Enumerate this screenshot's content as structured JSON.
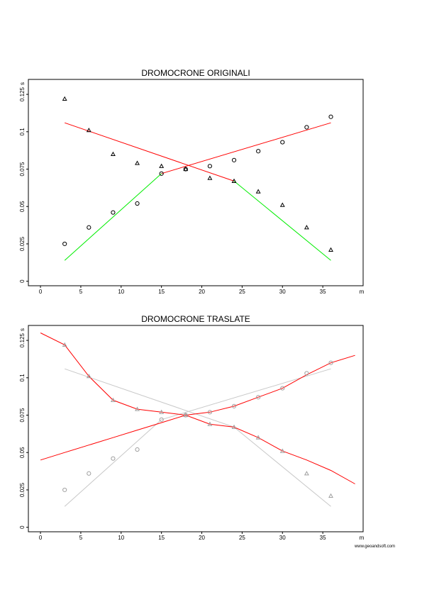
{
  "footer": {
    "credit": "www.geoandsoft.com"
  },
  "chart_data": [
    {
      "type": "scatter",
      "title": "DROMOCRONE ORIGINALI",
      "xlabel": "m",
      "ylabel": "s",
      "xlim": [
        -1.5,
        40
      ],
      "ylim": [
        -0.003,
        0.135
      ],
      "x_ticks": [
        0,
        5,
        10,
        15,
        20,
        25,
        30,
        35
      ],
      "y_ticks": [
        0,
        0.025,
        0.05,
        0.075,
        0.1,
        0.125
      ],
      "y_tick_labels": [
        "0",
        "0.025",
        "0.05",
        "0.075",
        "0.1",
        "0.125"
      ],
      "grid": false,
      "markers": [
        {
          "name": "triangles",
          "shape": "triangle",
          "color": "#000000",
          "x": [
            3,
            6,
            9,
            12,
            15,
            18,
            21,
            24,
            27,
            30,
            33,
            36
          ],
          "y": [
            0.122,
            0.101,
            0.085,
            0.079,
            0.077,
            0.075,
            0.069,
            0.067,
            0.06,
            0.051,
            0.036,
            0.021
          ]
        },
        {
          "name": "circles",
          "shape": "circle",
          "color": "#000000",
          "x": [
            3,
            6,
            9,
            12,
            15,
            18,
            21,
            24,
            27,
            30,
            33,
            36
          ],
          "y": [
            0.025,
            0.036,
            0.046,
            0.052,
            0.072,
            0.075,
            0.077,
            0.081,
            0.087,
            0.093,
            0.103,
            0.11
          ]
        }
      ],
      "lines": [
        {
          "color": "#ff0000",
          "x": [
            3,
            24
          ],
          "y": [
            0.106,
            0.067
          ]
        },
        {
          "color": "#ff0000",
          "x": [
            15,
            36
          ],
          "y": [
            0.072,
            0.106
          ]
        },
        {
          "color": "#00ee00",
          "x": [
            3,
            15
          ],
          "y": [
            0.014,
            0.072
          ]
        },
        {
          "color": "#00ee00",
          "x": [
            24,
            36
          ],
          "y": [
            0.067,
            0.014
          ]
        }
      ]
    },
    {
      "type": "line",
      "title": "DROMOCRONE TRASLATE",
      "xlabel": "m",
      "ylabel": "s",
      "xlim": [
        -1.5,
        40
      ],
      "ylim": [
        -0.003,
        0.135
      ],
      "x_ticks": [
        0,
        5,
        10,
        15,
        20,
        25,
        30,
        35
      ],
      "y_ticks": [
        0,
        0.025,
        0.05,
        0.075,
        0.1,
        0.125
      ],
      "y_tick_labels": [
        "0",
        "0.025",
        "0.05",
        "0.075",
        "0.1",
        "0.125"
      ],
      "grid": false,
      "markers": [
        {
          "name": "triangles",
          "shape": "triangle",
          "color": "#a0a0a0",
          "x": [
            3,
            6,
            9,
            12,
            15,
            18,
            21,
            24,
            27,
            30,
            33,
            36
          ],
          "y": [
            0.122,
            0.101,
            0.085,
            0.079,
            0.077,
            0.075,
            0.069,
            0.067,
            0.06,
            0.051,
            0.036,
            0.021
          ]
        },
        {
          "name": "circles",
          "shape": "circle",
          "color": "#a0a0a0",
          "x": [
            3,
            6,
            9,
            12,
            15,
            18,
            21,
            24,
            27,
            30,
            33,
            36
          ],
          "y": [
            0.025,
            0.036,
            0.046,
            0.052,
            0.072,
            0.075,
            0.077,
            0.081,
            0.087,
            0.093,
            0.103,
            0.11
          ]
        }
      ],
      "lines": [
        {
          "color": "#c8c8c8",
          "x": [
            3,
            24
          ],
          "y": [
            0.106,
            0.067
          ]
        },
        {
          "color": "#c8c8c8",
          "x": [
            15,
            36
          ],
          "y": [
            0.072,
            0.106
          ]
        },
        {
          "color": "#c8c8c8",
          "x": [
            3,
            15
          ],
          "y": [
            0.014,
            0.072
          ]
        },
        {
          "color": "#c8c8c8",
          "x": [
            24,
            36
          ],
          "y": [
            0.067,
            0.014
          ]
        },
        {
          "color": "#ff0000",
          "x": [
            0,
            3,
            6,
            9,
            12,
            15,
            18,
            21,
            24,
            27,
            30,
            33,
            36,
            39
          ],
          "y": [
            0.13,
            0.122,
            0.101,
            0.085,
            0.079,
            0.077,
            0.075,
            0.069,
            0.067,
            0.06,
            0.051,
            0.045,
            0.038,
            0.029
          ]
        },
        {
          "color": "#ff0000",
          "x": [
            0,
            3,
            6,
            9,
            12,
            15,
            18,
            21,
            24,
            27,
            30,
            33,
            36,
            39
          ],
          "y": [
            0.045,
            0.05,
            0.055,
            0.06,
            0.065,
            0.07,
            0.075,
            0.077,
            0.081,
            0.087,
            0.093,
            0.102,
            0.11,
            0.115
          ]
        }
      ]
    }
  ]
}
